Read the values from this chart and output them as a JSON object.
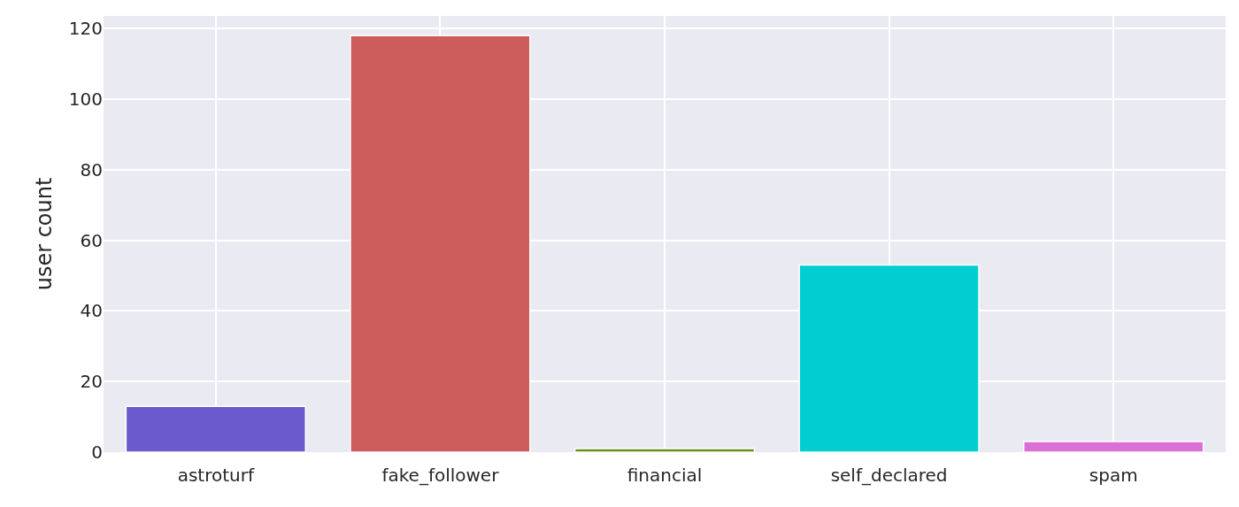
{
  "chart_data": {
    "type": "bar",
    "ylabel": "user count",
    "categories": [
      "astroturf",
      "fake_follower",
      "financial",
      "self_declared",
      "spam"
    ],
    "values": [
      13,
      118,
      1,
      53,
      3
    ],
    "colors": [
      "#6a5acd",
      "#cd5c5c",
      "#6b8e23",
      "#00ced1",
      "#da70d6"
    ],
    "ylim": [
      0,
      123.6
    ],
    "yticks": [
      0,
      20,
      40,
      60,
      80,
      100,
      120
    ],
    "grid": true
  }
}
